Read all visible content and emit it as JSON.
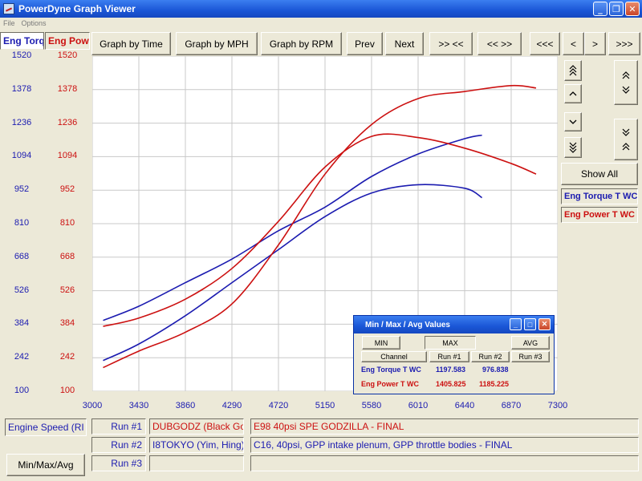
{
  "window": {
    "title": "PowerDyne Graph Viewer"
  },
  "menu": [
    "File",
    "Options"
  ],
  "tabs": {
    "left": "Eng Torq",
    "right": "Eng Powe"
  },
  "toolbar": {
    "graph_by_time": "Graph by Time",
    "graph_by_mph": "Graph by MPH",
    "graph_by_rpm": "Graph by RPM",
    "prev": "Prev",
    "next": "Next",
    "zoom_out": ">> <<",
    "zoom_in": "<< >>",
    "scroll_far_left": "<<<",
    "scroll_left": "<",
    "scroll_right": ">",
    "scroll_far_right": ">>>"
  },
  "side": {
    "show_all": "Show All",
    "legend_torque": "Eng Torque T WC",
    "legend_power": "Eng Power T WC"
  },
  "chart_data": {
    "type": "line",
    "x_ticks": [
      "3000",
      "3430",
      "3860",
      "4290",
      "4720",
      "5150",
      "5580",
      "6010",
      "6440",
      "6870",
      "7300"
    ],
    "y_ticks": [
      "1520",
      "1378",
      "1236",
      "1094",
      "952",
      "810",
      "668",
      "526",
      "384",
      "242",
      "100"
    ],
    "xlim": [
      3000,
      7300
    ],
    "ylim": [
      100,
      1520
    ],
    "grid": true,
    "series": [
      {
        "name": "Eng Torque T WC",
        "run": "Run #1",
        "color": "#1b1bb0",
        "x": [
          3100,
          3430,
          3860,
          4290,
          4720,
          5150,
          5580,
          6010,
          6440,
          6600
        ],
        "y": [
          230,
          300,
          420,
          560,
          700,
          840,
          940,
          975,
          960,
          920
        ]
      },
      {
        "name": "Eng Torque T WC",
        "run": "Run #2",
        "color": "#1b1bb0",
        "x": [
          3100,
          3430,
          3860,
          4290,
          4720,
          5150,
          5580,
          6010,
          6440,
          6600
        ],
        "y": [
          400,
          460,
          560,
          660,
          780,
          880,
          1010,
          1105,
          1170,
          1185
        ]
      },
      {
        "name": "Eng Power T WC",
        "run": "Run #1",
        "color": "#cc1010",
        "x": [
          3100,
          3430,
          3860,
          4290,
          4720,
          5150,
          5580,
          6010,
          6440,
          6870,
          7100
        ],
        "y": [
          200,
          270,
          350,
          470,
          720,
          1020,
          1230,
          1340,
          1370,
          1395,
          1385
        ]
      },
      {
        "name": "Eng Power T WC",
        "run": "Run #2",
        "color": "#cc1010",
        "x": [
          3100,
          3430,
          3860,
          4290,
          4720,
          5150,
          5580,
          6010,
          6440,
          6870,
          7100
        ],
        "y": [
          375,
          410,
          490,
          620,
          820,
          1050,
          1180,
          1175,
          1130,
          1065,
          1020
        ]
      }
    ]
  },
  "minmax": {
    "title": "Min / Max / Avg Values",
    "tab_min": "MIN",
    "tab_max": "MAX",
    "tab_avg": "AVG",
    "col_channel": "Channel",
    "col_run1": "Run #1",
    "col_run2": "Run #2",
    "col_run3": "Run #3",
    "rows": [
      {
        "channel": "Eng Torque T WC",
        "run1": "1197.583",
        "run2": "976.838"
      },
      {
        "channel": "Eng Power T WC",
        "run1": "1405.825",
        "run2": "1185.225"
      }
    ]
  },
  "bottom": {
    "x_channel": "Engine Speed (RI",
    "minmax_button": "Min/Max/Avg",
    "runs": [
      {
        "label": "Run #1",
        "name": "DUBGODZ (Black Goo",
        "desc": "E98 40psi SPE GODZILLA - FINAL"
      },
      {
        "label": "Run #2",
        "name": "I8TOKYO (Yim, Hing)",
        "desc": "C16, 40psi, GPP intake plenum, GPP throttle bodies - FINAL"
      },
      {
        "label": "Run #3",
        "name": "",
        "desc": ""
      }
    ]
  }
}
